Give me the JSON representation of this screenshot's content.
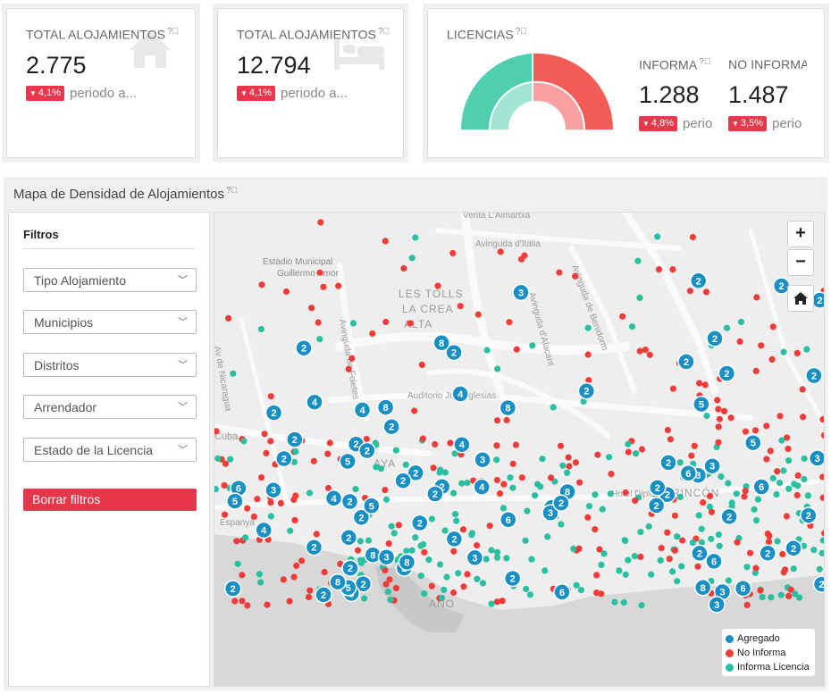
{
  "kpis": [
    {
      "label": "TOTAL ALOJAMIENTOS",
      "value": "2.775",
      "delta": "4,1%",
      "delta_text": "periodo a...",
      "icon": "house-icon"
    },
    {
      "label": "TOTAL ALOJAMIENTOS",
      "value": "12.794",
      "delta": "4,1%",
      "delta_text": "periodo a...",
      "icon": "bed-icon"
    }
  ],
  "licencias": {
    "label": "LICENCIAS",
    "informa": {
      "label": "INFORMA",
      "value": "1.288",
      "delta": "4,8%",
      "delta_text": "perio"
    },
    "no_informa": {
      "label": "NO INFORMA",
      "value": "1.487",
      "delta": "3,5%",
      "delta_text": "perio"
    },
    "colors": {
      "informa": "#4fcfb0",
      "no_informa": "#f25c57",
      "informa_inner": "#a0e6d3",
      "no_informa_inner": "#f9a0a3"
    }
  },
  "map_section": {
    "title": "Mapa de Densidad de Alojamientos",
    "filters": {
      "title": "Filtros",
      "selects": [
        "Tipo Alojamiento",
        "Municipios",
        "Distritos",
        "Arrendador",
        "Estado de la Licencia"
      ],
      "clear_label": "Borrar filtros"
    },
    "map": {
      "street_labels": [
        "Venta L'Almartxa",
        "Avinguda d'Itàlia",
        "Estadio Municipal",
        "Guillermo Amor",
        "LES TOLLS",
        "LA CREA",
        "ALTA",
        "Avinguda de Foietes",
        "Avinguda de Benidorm",
        "Avinguda d'Alacant",
        "Auditorio Julio Iglesias",
        "Cuba",
        "Av de Nicaragua",
        "AYA",
        "Hotel Diplomatic",
        "RINCÓN",
        "Espanya",
        "ANO"
      ],
      "zoom_in": "+",
      "zoom_out": "−",
      "legend": [
        {
          "label": "Agregado",
          "color": "#1a8fc4"
        },
        {
          "label": "No Informa",
          "color": "#ef3c39"
        },
        {
          "label": "Informa Licencia",
          "color": "#28c0a0"
        }
      ]
    }
  }
}
